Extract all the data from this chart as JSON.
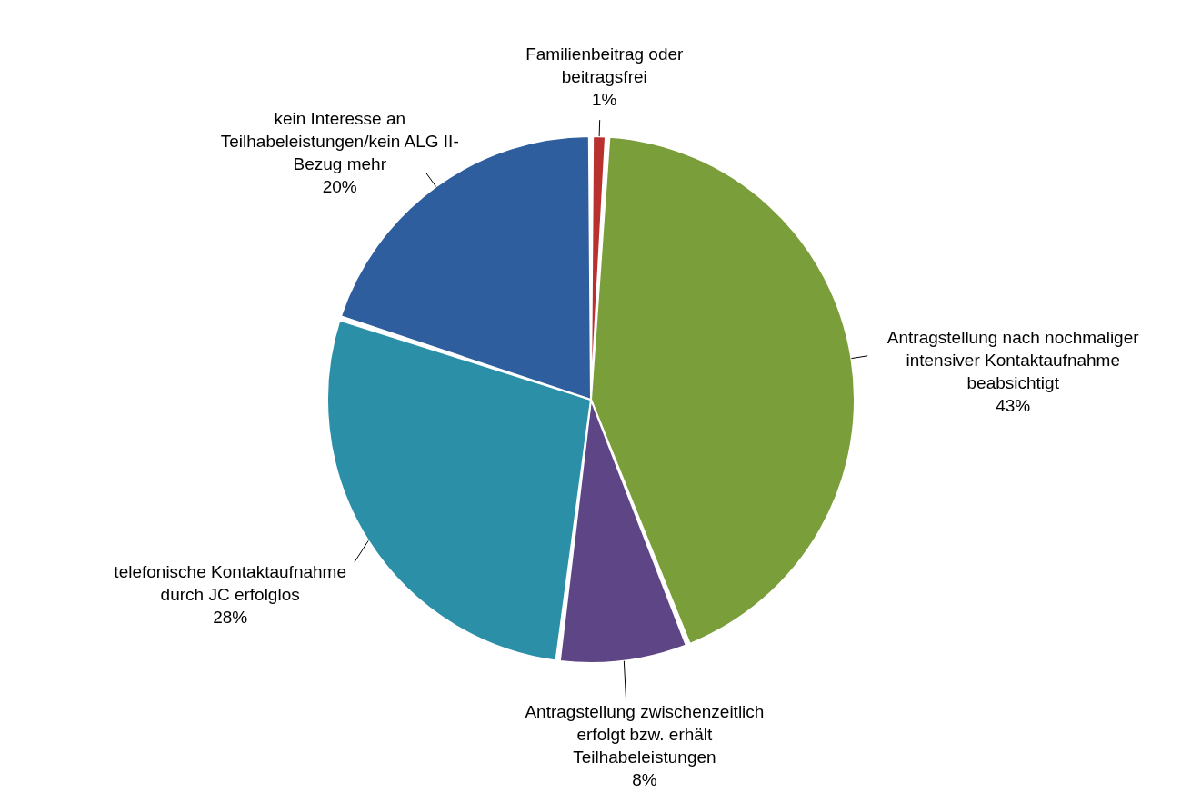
{
  "chart_data": {
    "type": "pie",
    "categories": [
      "Familienbeitrag oder beitragsfrei",
      "Antragstellung nach nochmaliger intensiver Kontaktaufnahme beabsichtigt",
      "Antragstellung zwischenzeitlich erfolgt bzw. erhält Teilhabeleistungen",
      "telefonische Kontaktaufnahme durch JC erfolglos",
      "kein Interesse an Teilhabeleistungen/kein ALG II-Bezug mehr"
    ],
    "values": [
      1,
      43,
      8,
      28,
      20
    ],
    "value_labels": [
      "1%",
      "43%",
      "8%",
      "28%",
      "20%"
    ],
    "colors": [
      "#b8312f",
      "#7a9e3a",
      "#5e4585",
      "#2b8fa8",
      "#2e5e9e"
    ],
    "legend": false
  }
}
